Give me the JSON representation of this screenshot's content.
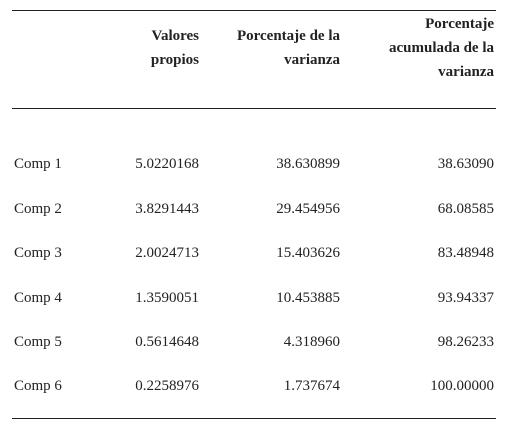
{
  "table": {
    "headers": [
      {
        "lines": [
          "",
          ""
        ]
      },
      {
        "lines": [
          "Valores",
          "propios"
        ]
      },
      {
        "lines": [
          "Porcentaje de la",
          "varianza"
        ]
      },
      {
        "lines": [
          "Porcentaje",
          "acumulada de la",
          "varianza"
        ]
      }
    ],
    "rows": [
      [
        "Comp 1",
        "5.0220168",
        "38.630899",
        "38.63090"
      ],
      [
        "Comp 2",
        "3.8291443",
        "29.454956",
        "68.08585"
      ],
      [
        "Comp 3",
        "2.0024713",
        "15.403626",
        "83.48948"
      ],
      [
        "Comp 4",
        "1.3590051",
        "10.453885",
        "93.94337"
      ],
      [
        "Comp 5",
        "0.5614648",
        "4.318960",
        "98.26233"
      ],
      [
        "Comp 6",
        "0.2258976",
        "1.737674",
        "100.00000"
      ]
    ]
  }
}
